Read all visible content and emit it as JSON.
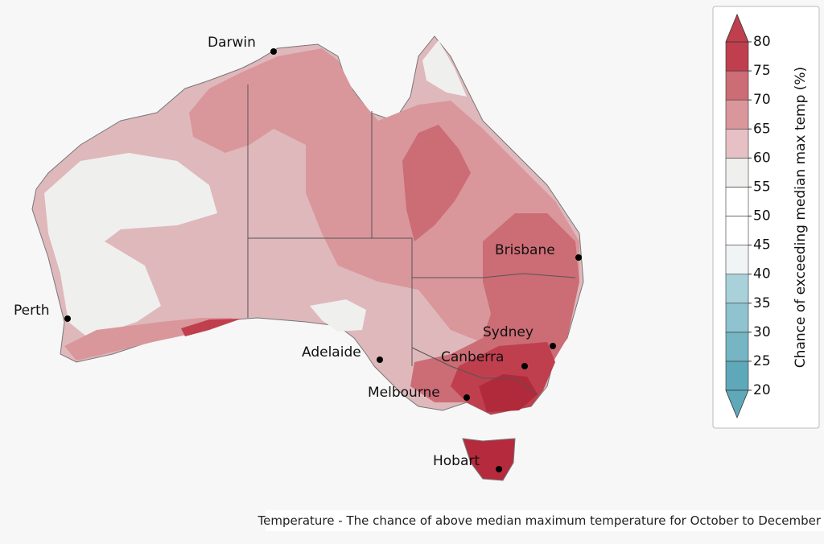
{
  "map": {
    "cities": [
      "Darwin",
      "Brisbane",
      "Perth",
      "Sydney",
      "Adelaide",
      "Canberra",
      "Melbourne",
      "Hobart"
    ]
  },
  "legend": {
    "title": "Chance of exceeding median max temp (%)",
    "ticks": [
      80,
      75,
      70,
      65,
      60,
      55,
      50,
      45,
      40,
      35,
      30,
      25,
      20
    ],
    "colors": [
      "#5ea8b9",
      "#75b5c4",
      "#8ec3cf",
      "#a8d1da",
      "#f1f4f4",
      "#ffffff",
      "#ffffff",
      "#efefee",
      "#e6c0c4",
      "#d9979b",
      "#cc6c75",
      "#bf3f4e"
    ]
  },
  "caption": "Temperature - The chance of above median maximum temperature for October to December"
}
